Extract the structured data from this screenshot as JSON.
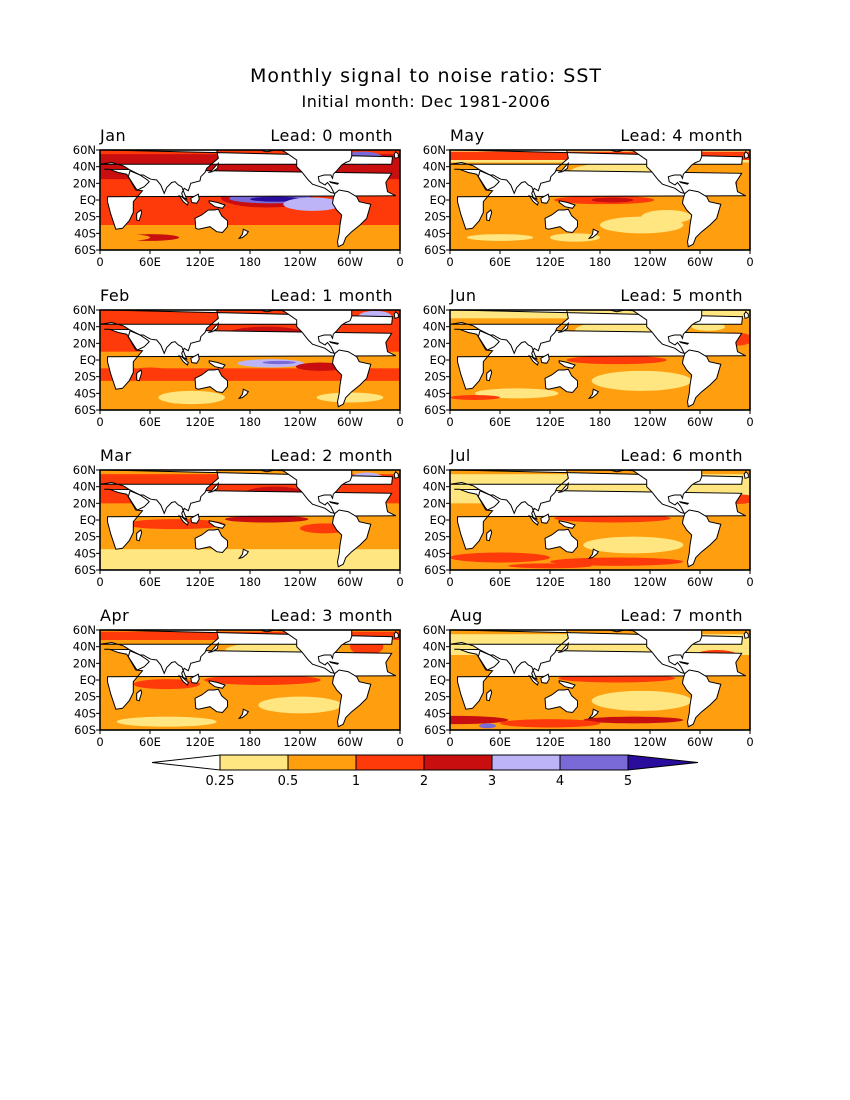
{
  "figure": {
    "title": "Monthly signal to noise ratio: SST",
    "subtitle": "Initial month: Dec 1981-2006"
  },
  "chart_data": {
    "type": "heatmap",
    "variable": "SST signal to noise ratio",
    "x_ticks": [
      "0",
      "60E",
      "120E",
      "180",
      "120W",
      "60W",
      "0"
    ],
    "y_ticks": [
      "60N",
      "40N",
      "20N",
      "EQ",
      "20S",
      "40S",
      "60S"
    ],
    "xlim": [
      0,
      360
    ],
    "ylim": [
      -60,
      60
    ],
    "colorbar": {
      "levels": [
        "0.25",
        "0.5",
        "1",
        "2",
        "3",
        "4",
        "5"
      ],
      "colors": [
        "#ffffff",
        "#ffe680",
        "#ff9f0f",
        "#ff3a0a",
        "#c80e0e",
        "#bdb3f7",
        "#7a6ad8",
        "#2a0d9c"
      ]
    },
    "panels": [
      {
        "month": "Jan",
        "lead": "Lead: 0 month"
      },
      {
        "month": "May",
        "lead": "Lead: 4 month"
      },
      {
        "month": "Feb",
        "lead": "Lead: 1 month"
      },
      {
        "month": "Jun",
        "lead": "Lead: 5 month"
      },
      {
        "month": "Mar",
        "lead": "Lead: 2 month"
      },
      {
        "month": "Jul",
        "lead": "Lead: 6 month"
      },
      {
        "month": "Apr",
        "lead": "Lead: 3 month"
      },
      {
        "month": "Aug",
        "lead": "Lead: 7 month"
      }
    ]
  }
}
